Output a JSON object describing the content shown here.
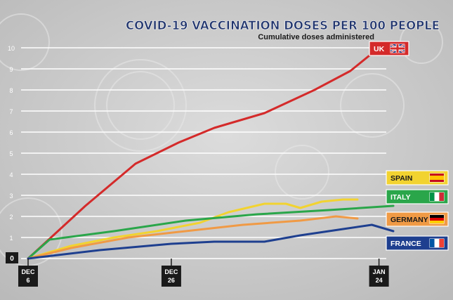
{
  "chart_data": {
    "type": "line",
    "title": "COVID-19 VACCINATION DOSES PER 100 PEOPLE",
    "subtitle": "Cumulative doses administered",
    "x_ticks": [
      {
        "day": 0,
        "line1": "DEC",
        "line2": "6"
      },
      {
        "day": 20,
        "line1": "DEC",
        "line2": "26"
      },
      {
        "day": 49,
        "line1": "JAN",
        "line2": "24"
      }
    ],
    "xlim": [
      0,
      51
    ],
    "ylim": [
      0,
      10
    ],
    "y_ticks": [
      "0",
      "1",
      "2",
      "3",
      "4",
      "5",
      "6",
      "7",
      "8",
      "9",
      "10"
    ],
    "grid": true,
    "series": [
      {
        "name": "UK",
        "color": "#d42a2a",
        "flag": "uk-flag-icon",
        "label_style": {
          "bg": "#d42a2a",
          "fg": "#ffffff"
        },
        "points": [
          [
            0,
            0
          ],
          [
            8,
            2.5
          ],
          [
            15,
            4.5
          ],
          [
            21,
            5.5
          ],
          [
            26,
            6.2
          ],
          [
            33,
            6.9
          ],
          [
            40,
            8
          ],
          [
            45,
            8.9
          ],
          [
            49,
            10
          ]
        ]
      },
      {
        "name": "SPAIN",
        "color": "#f2d330",
        "flag": "spain-flag-icon",
        "label_style": {
          "bg": "#f2d330",
          "fg": "#1a1a1a"
        },
        "points": [
          [
            0,
            0
          ],
          [
            6,
            0.6
          ],
          [
            12,
            1.0
          ],
          [
            18,
            1.3
          ],
          [
            24,
            1.7
          ],
          [
            28,
            2.2
          ],
          [
            33,
            2.6
          ],
          [
            36,
            2.6
          ],
          [
            38,
            2.4
          ],
          [
            41,
            2.7
          ],
          [
            44,
            2.8
          ],
          [
            46,
            2.8
          ]
        ]
      },
      {
        "name": "ITALY",
        "color": "#2aa64a",
        "flag": "italy-flag-icon",
        "label_style": {
          "bg": "#2aa64a",
          "fg": "#ffffff"
        },
        "points": [
          [
            0,
            0
          ],
          [
            3,
            0.9
          ],
          [
            12,
            1.3
          ],
          [
            22,
            1.8
          ],
          [
            32,
            2.1
          ],
          [
            42,
            2.3
          ],
          [
            51,
            2.5
          ]
        ]
      },
      {
        "name": "GERMANY",
        "color": "#f09a45",
        "flag": "germany-flag-icon",
        "label_style": {
          "bg": "#f09a45",
          "fg": "#1a1a1a"
        },
        "points": [
          [
            0,
            0
          ],
          [
            6,
            0.5
          ],
          [
            14,
            1.0
          ],
          [
            22,
            1.3
          ],
          [
            30,
            1.6
          ],
          [
            38,
            1.8
          ],
          [
            43,
            2.0
          ],
          [
            46,
            1.9
          ]
        ]
      },
      {
        "name": "FRANCE",
        "color": "#1e3f8f",
        "flag": "france-flag-icon",
        "label_style": {
          "bg": "#1e3f8f",
          "fg": "#ffffff"
        },
        "points": [
          [
            0,
            0
          ],
          [
            10,
            0.4
          ],
          [
            20,
            0.7
          ],
          [
            26,
            0.8
          ],
          [
            33,
            0.8
          ],
          [
            38,
            1.1
          ],
          [
            44,
            1.4
          ],
          [
            48,
            1.6
          ],
          [
            51,
            1.3
          ]
        ]
      }
    ]
  }
}
